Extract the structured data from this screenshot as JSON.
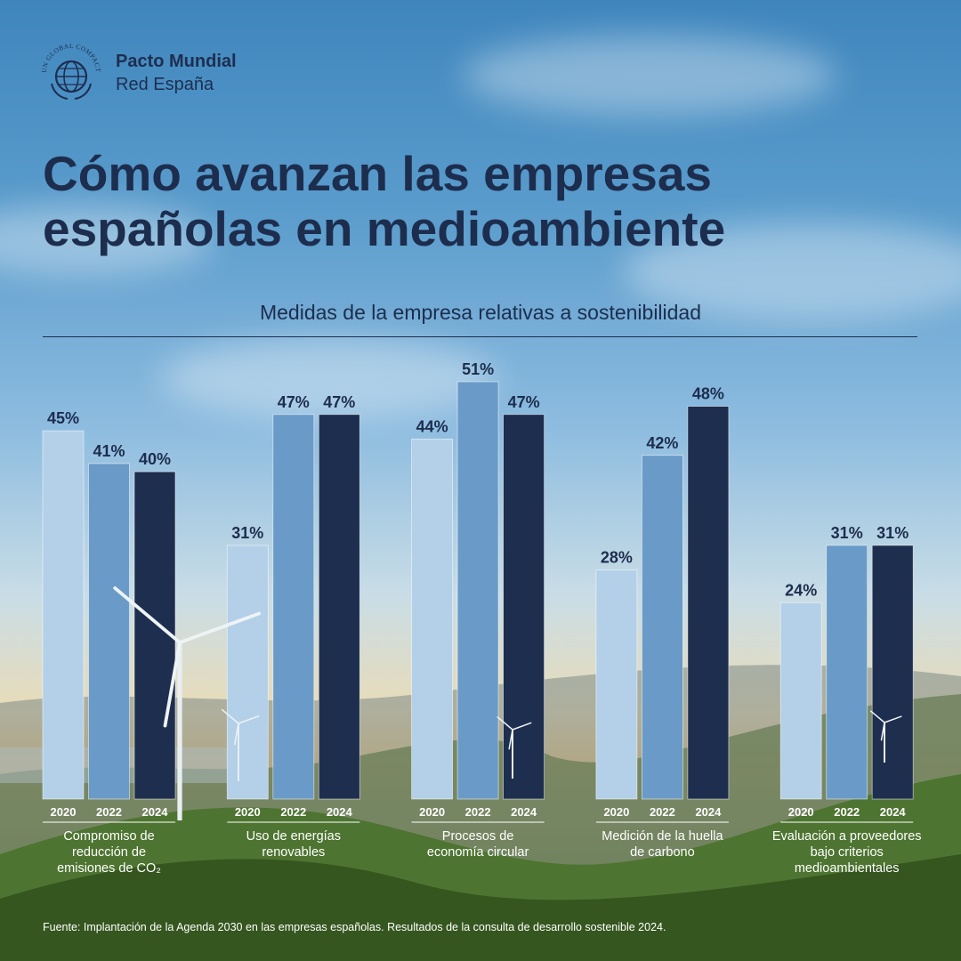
{
  "brand": {
    "arc_text": "UN GLOBAL COMPACT",
    "name": "Pacto Mundial",
    "subname": "Red España"
  },
  "headline": "Cómo avanzan las empresas españolas en medioambiente",
  "colors": {
    "2020": "#b3d0e8",
    "2022": "#6a9bc8",
    "2024": "#1e2e4f",
    "text": "#1d2d4d"
  },
  "chart_data": {
    "type": "bar",
    "title": "Medidas de la empresa relativas a sostenibilidad",
    "categories": [
      "Compromiso de reducción de emisiones de CO₂",
      "Uso de energías renovables",
      "Procesos de economía circular",
      "Medición de la huella de carbono",
      "Evaluación a proveedores bajo criterios medioambientales"
    ],
    "category_lines": [
      [
        "Compromiso de",
        "reducción de",
        "emisiones de CO₂"
      ],
      [
        "Uso de energías",
        "renovables"
      ],
      [
        "Procesos de",
        "economía circular"
      ],
      [
        "Medición de la huella",
        "de carbono"
      ],
      [
        "Evaluación a proveedores",
        "bajo criterios",
        "medioambientales"
      ]
    ],
    "series": [
      {
        "name": "2020",
        "values": [
          45,
          31,
          44,
          28,
          24
        ]
      },
      {
        "name": "2022",
        "values": [
          41,
          47,
          51,
          42,
          31
        ]
      },
      {
        "name": "2024",
        "values": [
          40,
          47,
          47,
          48,
          31
        ]
      }
    ],
    "value_suffix": "%",
    "ylim": [
      0,
      51
    ]
  },
  "source": "Fuente: Implantación de la Agenda 2030 en las empresas españolas. Resultados de la consulta de desarrollo sostenible 2024."
}
